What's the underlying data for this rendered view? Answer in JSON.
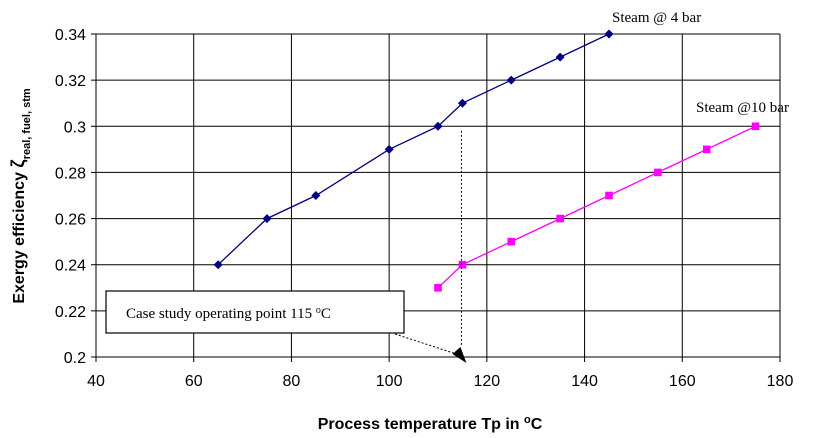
{
  "chart_data": {
    "type": "line",
    "xlabel": "Process temperature Tp in °C",
    "xlabel_parts": {
      "main": "Process temperature Tp in ",
      "sup": "o",
      "unit": "C"
    },
    "ylabel_parts": {
      "main": "Exergy efficiency ",
      "zeta": "ζ",
      "sub": "real, fuel, stm"
    },
    "xlim": [
      40,
      180
    ],
    "ylim": [
      0.2,
      0.34
    ],
    "x_ticks": [
      "40",
      "60",
      "80",
      "100",
      "120",
      "140",
      "160",
      "180"
    ],
    "y_ticks": [
      "0.2",
      "0.22",
      "0.24",
      "0.26",
      "0.28",
      "0.3",
      "0.32",
      "0.34"
    ],
    "grid": true,
    "series": [
      {
        "name": "Steam @ 4 bar",
        "color": "#000080",
        "marker": "diamond",
        "x": [
          65,
          75,
          85,
          100,
          110,
          115,
          125,
          135,
          145
        ],
        "y": [
          0.24,
          0.26,
          0.27,
          0.29,
          0.3,
          0.31,
          0.32,
          0.33,
          0.34
        ]
      },
      {
        "name": "Steam @10 bar",
        "color": "#FF00FF",
        "marker": "square",
        "x": [
          110,
          115,
          125,
          135,
          145,
          155,
          165,
          175
        ],
        "y": [
          0.23,
          0.24,
          0.25,
          0.26,
          0.27,
          0.28,
          0.29,
          0.3
        ]
      }
    ],
    "annotation": {
      "text_main": "Case study operating point 115 ",
      "text_sup": "o",
      "text_unit": "C",
      "x": 115
    }
  }
}
